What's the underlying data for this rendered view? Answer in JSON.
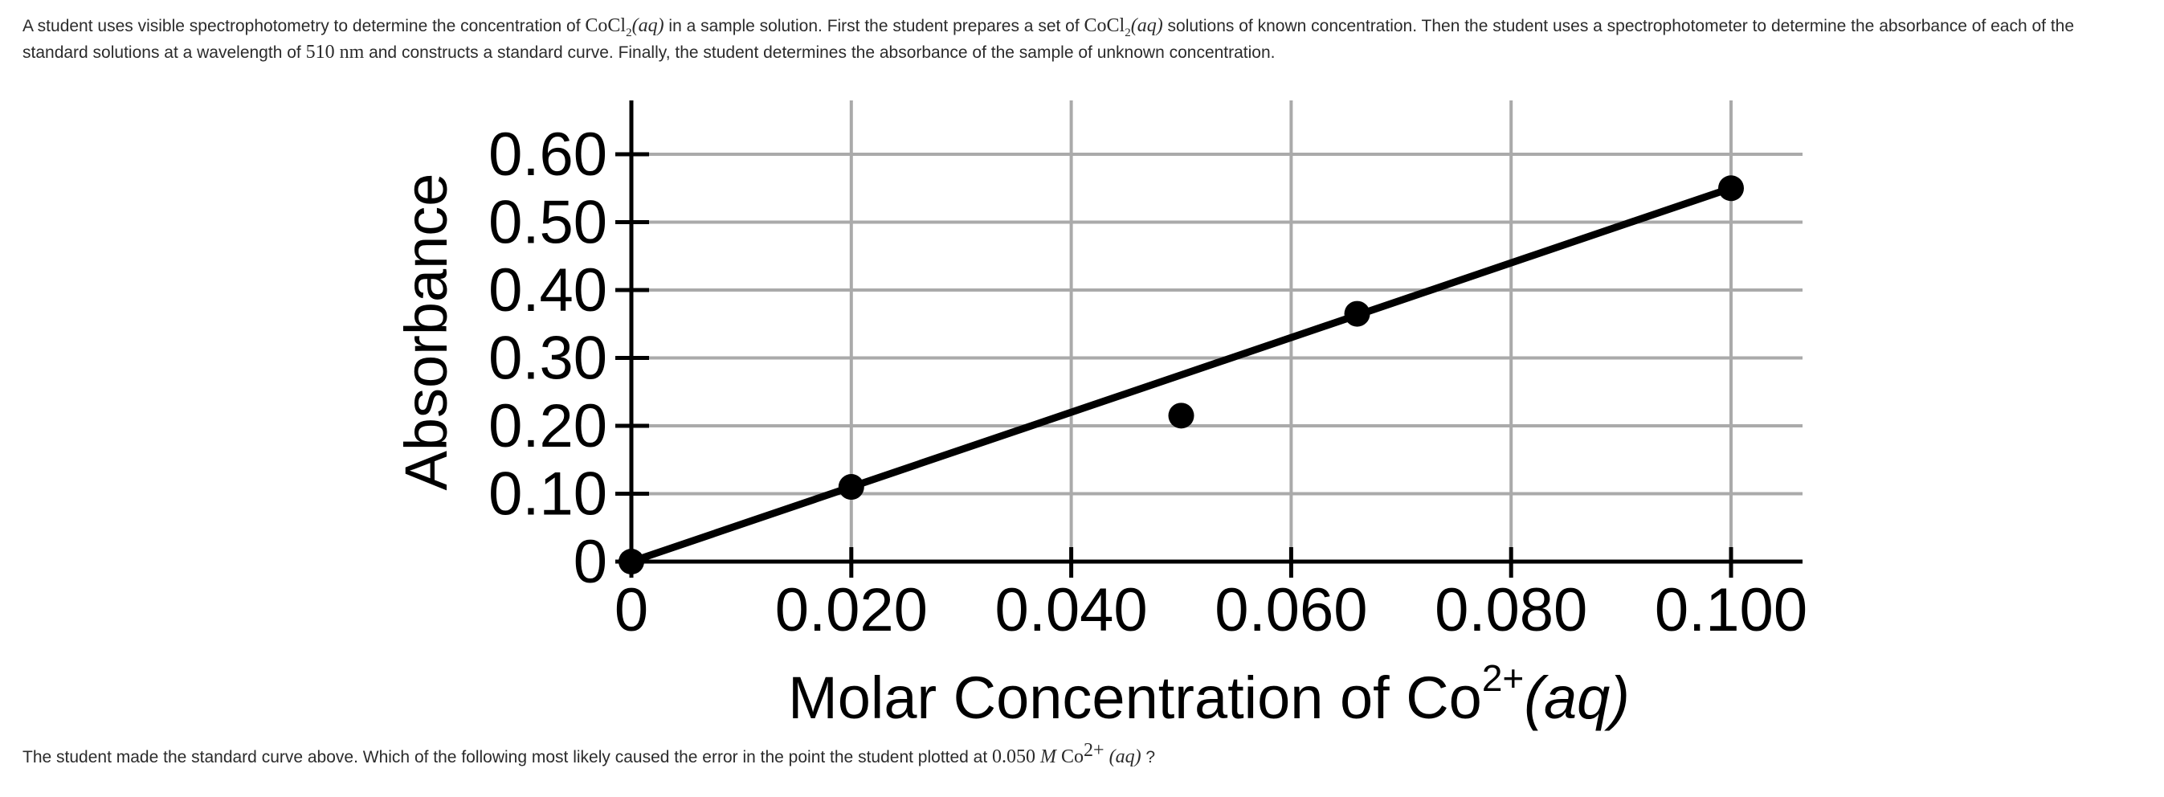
{
  "intro": {
    "t1": "A student uses visible spectrophotometry to determine the concentration of ",
    "chem1_base": "CoCl",
    "chem1_sub": "2",
    "chem1_phase": "(aq)",
    "t2": " in a sample solution. First the student prepares a set of ",
    "chem2_base": "CoCl",
    "chem2_sub": "2",
    "chem2_phase": "(aq)",
    "t3": " solutions of known concentration. Then the student uses a spectrophotometer to determine the absorbance of each of the standard solutions at a wavelength of ",
    "wavelength": "510 nm",
    "t4": " and constructs a standard curve. Finally, the student determines the absorbance of the sample of unknown concentration."
  },
  "question": {
    "t1": "The student made the standard curve above. Which of the following most likely caused the error in the point the student plotted at ",
    "conc": "0.050 ",
    "unit": "M",
    "ion_base": " Co",
    "ion_sup": "2+",
    "phase": " (aq)",
    "t2": " ?"
  },
  "chart_data": {
    "type": "scatter",
    "title": "",
    "xlabel": "Molar Concentration of Co",
    "xlabel_sup": "2+",
    "xlabel_phase": "(aq)",
    "ylabel": "Absorbance",
    "xlim": [
      0,
      0.1
    ],
    "ylim": [
      0,
      0.6
    ],
    "x_ticks": [
      0,
      0.02,
      0.04,
      0.06,
      0.08,
      0.1
    ],
    "x_tick_labels": [
      "0",
      "0.020",
      "0.040",
      "0.060",
      "0.080",
      "0.100"
    ],
    "y_ticks": [
      0,
      0.1,
      0.2,
      0.3,
      0.4,
      0.5,
      0.6
    ],
    "y_tick_labels": [
      "0",
      "0.10",
      "0.20",
      "0.30",
      "0.40",
      "0.50",
      "0.60"
    ],
    "grid": true,
    "points": [
      {
        "x": 0,
        "y": 0
      },
      {
        "x": 0.02,
        "y": 0.11
      },
      {
        "x": 0.05,
        "y": 0.215
      },
      {
        "x": 0.066,
        "y": 0.365
      },
      {
        "x": 0.1,
        "y": 0.55
      }
    ],
    "fit_line": {
      "x": [
        0,
        0.1
      ],
      "y": [
        0,
        0.55
      ]
    }
  }
}
